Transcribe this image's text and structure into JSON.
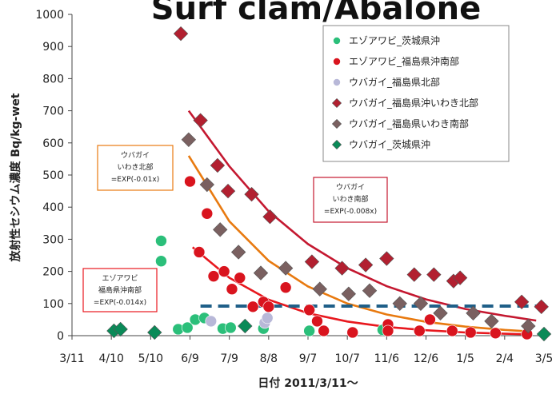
{
  "chart_data": {
    "type": "scatter",
    "title": "Surf clam/Abalone",
    "xlabel": "日付 2011/3/11～",
    "ylabel": "放射性セシウム濃度 Bq/kg-wet",
    "ylim": [
      0,
      1000
    ],
    "y_ticks": [
      0,
      100,
      200,
      300,
      400,
      500,
      600,
      700,
      800,
      900,
      1000
    ],
    "x_axis": "days since 2011/3/11",
    "xlim": [
      0,
      360
    ],
    "x_ticks": [
      {
        "label": "3/11",
        "day": 0
      },
      {
        "label": "4/10",
        "day": 30
      },
      {
        "label": "5/10",
        "day": 60
      },
      {
        "label": "6/9",
        "day": 90
      },
      {
        "label": "7/9",
        "day": 120
      },
      {
        "label": "8/8",
        "day": 150
      },
      {
        "label": "9/7",
        "day": 180
      },
      {
        "label": "10/7",
        "day": 210
      },
      {
        "label": "11/6",
        "day": 240
      },
      {
        "label": "12/6",
        "day": 270
      },
      {
        "label": "1/5",
        "day": 300
      },
      {
        "label": "2/4",
        "day": 330
      },
      {
        "label": "3/5",
        "day": 360
      }
    ],
    "grid": false,
    "legend_position": "top-right",
    "series": [
      {
        "name": "エゾアワビ_茨城県沖",
        "color": "#2bbf7a",
        "marker": "circle",
        "points": [
          [
            68,
            295
          ],
          [
            68,
            232
          ],
          [
            81,
            20
          ],
          [
            88,
            25
          ],
          [
            94,
            50
          ],
          [
            101,
            55
          ],
          [
            115,
            22
          ],
          [
            121,
            25
          ],
          [
            146,
            22
          ],
          [
            181,
            15
          ],
          [
            237,
            18
          ]
        ]
      },
      {
        "name": "エゾアワビ_福島県沖南部",
        "color": "#d9141e",
        "marker": "circle",
        "points": [
          [
            90,
            480
          ],
          [
            97,
            260
          ],
          [
            103,
            380
          ],
          [
            108,
            185
          ],
          [
            116,
            200
          ],
          [
            122,
            145
          ],
          [
            128,
            180
          ],
          [
            138,
            90
          ],
          [
            146,
            105
          ],
          [
            150,
            90
          ],
          [
            163,
            150
          ],
          [
            181,
            80
          ],
          [
            187,
            45
          ],
          [
            192,
            15
          ],
          [
            214,
            10
          ],
          [
            241,
            35
          ],
          [
            241,
            15
          ],
          [
            265,
            15
          ],
          [
            273,
            50
          ],
          [
            290,
            15
          ],
          [
            304,
            10
          ],
          [
            323,
            8
          ],
          [
            347,
            5
          ]
        ]
      },
      {
        "name": "ウバガイ_福島県北部",
        "color": "#b8b8d8",
        "marker": "circle",
        "points": [
          [
            106,
            45
          ],
          [
            147,
            40
          ],
          [
            149,
            55
          ]
        ]
      },
      {
        "name": "ウバガイ_福島県沖いわき北部",
        "color": "#b22030",
        "marker": "diamond",
        "points": [
          [
            83,
            940
          ],
          [
            98,
            670
          ],
          [
            111,
            530
          ],
          [
            119,
            450
          ],
          [
            137,
            440
          ],
          [
            151,
            370
          ],
          [
            183,
            230
          ],
          [
            206,
            210
          ],
          [
            224,
            220
          ],
          [
            240,
            240
          ],
          [
            261,
            190
          ],
          [
            276,
            190
          ],
          [
            291,
            170
          ],
          [
            296,
            180
          ],
          [
            343,
            105
          ],
          [
            358,
            90
          ]
        ]
      },
      {
        "name": "ウバガイ_福島県いわき南部",
        "color": "#7a6060",
        "marker": "diamond",
        "points": [
          [
            89,
            610
          ],
          [
            103,
            470
          ],
          [
            113,
            330
          ],
          [
            127,
            260
          ],
          [
            144,
            195
          ],
          [
            163,
            210
          ],
          [
            189,
            145
          ],
          [
            211,
            130
          ],
          [
            227,
            140
          ],
          [
            250,
            100
          ],
          [
            266,
            100
          ],
          [
            281,
            70
          ],
          [
            306,
            70
          ],
          [
            320,
            45
          ],
          [
            348,
            30
          ]
        ]
      },
      {
        "name": "ウバガイ_茨城県沖",
        "color": "#0a8a58",
        "marker": "diamond",
        "points": [
          [
            32,
            15
          ],
          [
            37,
            20
          ],
          [
            63,
            10
          ],
          [
            132,
            30
          ],
          [
            360,
            5
          ]
        ]
      }
    ],
    "fits": [
      {
        "color": "#e87a10",
        "points": [
          [
            89,
            560
          ],
          [
            120,
            356
          ],
          [
            150,
            233
          ],
          [
            180,
            153
          ],
          [
            210,
            100
          ],
          [
            240,
            66
          ],
          [
            270,
            43
          ],
          [
            300,
            28
          ],
          [
            330,
            18
          ],
          [
            350,
            13
          ]
        ]
      },
      {
        "color": "#c41830",
        "points": [
          [
            89,
            700
          ],
          [
            120,
            527
          ],
          [
            150,
            387
          ],
          [
            180,
            285
          ],
          [
            210,
            210
          ],
          [
            240,
            154
          ],
          [
            270,
            113
          ],
          [
            300,
            83
          ],
          [
            330,
            62
          ],
          [
            354,
            47
          ]
        ]
      },
      {
        "color": "#e8181e",
        "points": [
          [
            92,
            275
          ],
          [
            120,
            180
          ],
          [
            150,
            112
          ],
          [
            180,
            70
          ],
          [
            210,
            44
          ],
          [
            240,
            27
          ],
          [
            270,
            17
          ],
          [
            300,
            10
          ],
          [
            330,
            6
          ],
          [
            350,
            4
          ]
        ]
      }
    ],
    "reference_line": {
      "y": 92,
      "color": "#1f5f88",
      "style": "dashed",
      "x_from": 98,
      "x_to": 362
    },
    "annotations": [
      {
        "id": "kitabu",
        "lines": [
          "ウバガイ",
          "いわき北部",
          "=EXP(-0.01x)"
        ],
        "border": "#e87a10"
      },
      {
        "id": "nanbu",
        "lines": [
          "ウバガイ",
          "いわき南部",
          "=EXP(-0.008x)"
        ],
        "border": "#c41830"
      },
      {
        "id": "ezo",
        "lines": [
          "エゾアワビ",
          "福島県沖南部",
          "=EXP(-0.014x)"
        ],
        "border": "#e8181e"
      }
    ]
  }
}
